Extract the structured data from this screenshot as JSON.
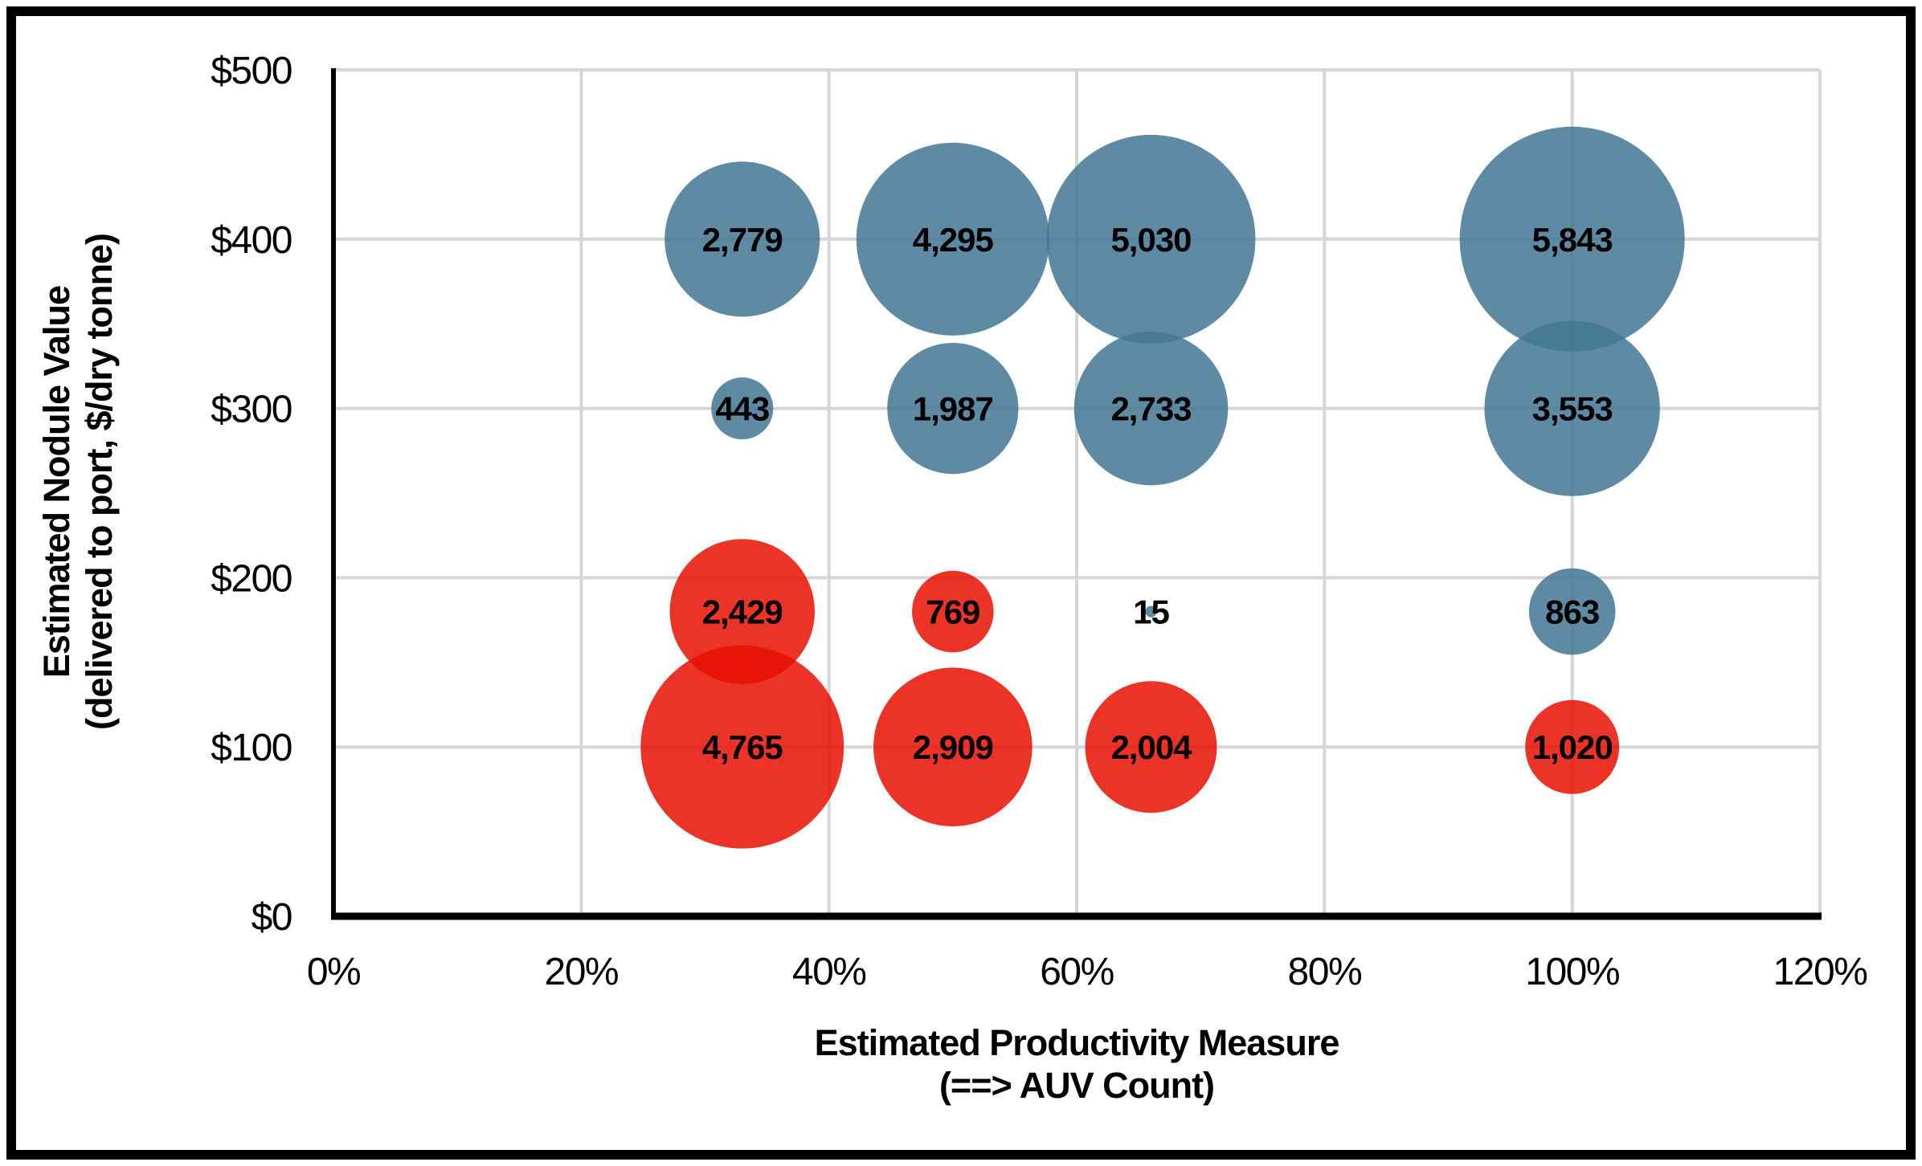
{
  "chart_data": {
    "type": "bubble",
    "x_axis": {
      "title_lines": [
        "Estimated Productivity Measure",
        "(==> AUV Count)"
      ],
      "tick_labels": [
        "0%",
        "20%",
        "40%",
        "60%",
        "80%",
        "100%",
        "120%"
      ],
      "tick_values_pct": [
        0,
        20,
        40,
        60,
        80,
        100,
        120
      ],
      "range_pct": [
        0,
        120
      ],
      "grid": true
    },
    "y_axis": {
      "title_lines": [
        "Estimated Nodule Value",
        "(delivered to port, $/dry tonne)"
      ],
      "tick_labels": [
        "$0",
        "$100",
        "$200",
        "$300",
        "$400",
        "$500"
      ],
      "tick_values_usd": [
        0,
        100,
        200,
        300,
        400,
        500
      ],
      "range_usd": [
        0,
        500
      ],
      "grid": true
    },
    "size_encoding": {
      "rule": "bubble area proportional to value",
      "max_value": 5843
    },
    "colors": {
      "blue_series_fill": "#427793",
      "red_series_fill": "#E90F02",
      "fill_opacity": 0.85,
      "bubble_label": "#000000",
      "gridline": "#D6D6D6",
      "axis": "#000000"
    },
    "points": [
      {
        "x_pct": 33,
        "y_usd": 400,
        "value": 2779,
        "label": "2,779",
        "series": "blue"
      },
      {
        "x_pct": 50,
        "y_usd": 400,
        "value": 4295,
        "label": "4,295",
        "series": "blue"
      },
      {
        "x_pct": 66,
        "y_usd": 400,
        "value": 5030,
        "label": "5,030",
        "series": "blue"
      },
      {
        "x_pct": 100,
        "y_usd": 400,
        "value": 5843,
        "label": "5,843",
        "series": "blue"
      },
      {
        "x_pct": 33,
        "y_usd": 300,
        "value": 443,
        "label": "443",
        "series": "blue"
      },
      {
        "x_pct": 50,
        "y_usd": 300,
        "value": 1987,
        "label": "1,987",
        "series": "blue"
      },
      {
        "x_pct": 66,
        "y_usd": 300,
        "value": 2733,
        "label": "2,733",
        "series": "blue"
      },
      {
        "x_pct": 100,
        "y_usd": 300,
        "value": 3553,
        "label": "3,553",
        "series": "blue"
      },
      {
        "x_pct": 33,
        "y_usd": 180,
        "value": 2429,
        "label": "2,429",
        "series": "red"
      },
      {
        "x_pct": 50,
        "y_usd": 180,
        "value": 769,
        "label": "769",
        "series": "red"
      },
      {
        "x_pct": 66,
        "y_usd": 180,
        "value": 15,
        "label": "15",
        "series": "blue"
      },
      {
        "x_pct": 100,
        "y_usd": 180,
        "value": 863,
        "label": "863",
        "series": "blue"
      },
      {
        "x_pct": 33,
        "y_usd": 100,
        "value": 4765,
        "label": "4,765",
        "series": "red"
      },
      {
        "x_pct": 50,
        "y_usd": 100,
        "value": 2909,
        "label": "2,909",
        "series": "red"
      },
      {
        "x_pct": 66,
        "y_usd": 100,
        "value": 2004,
        "label": "2,004",
        "series": "red"
      },
      {
        "x_pct": 100,
        "y_usd": 100,
        "value": 1020,
        "label": "1,020",
        "series": "red"
      }
    ]
  }
}
